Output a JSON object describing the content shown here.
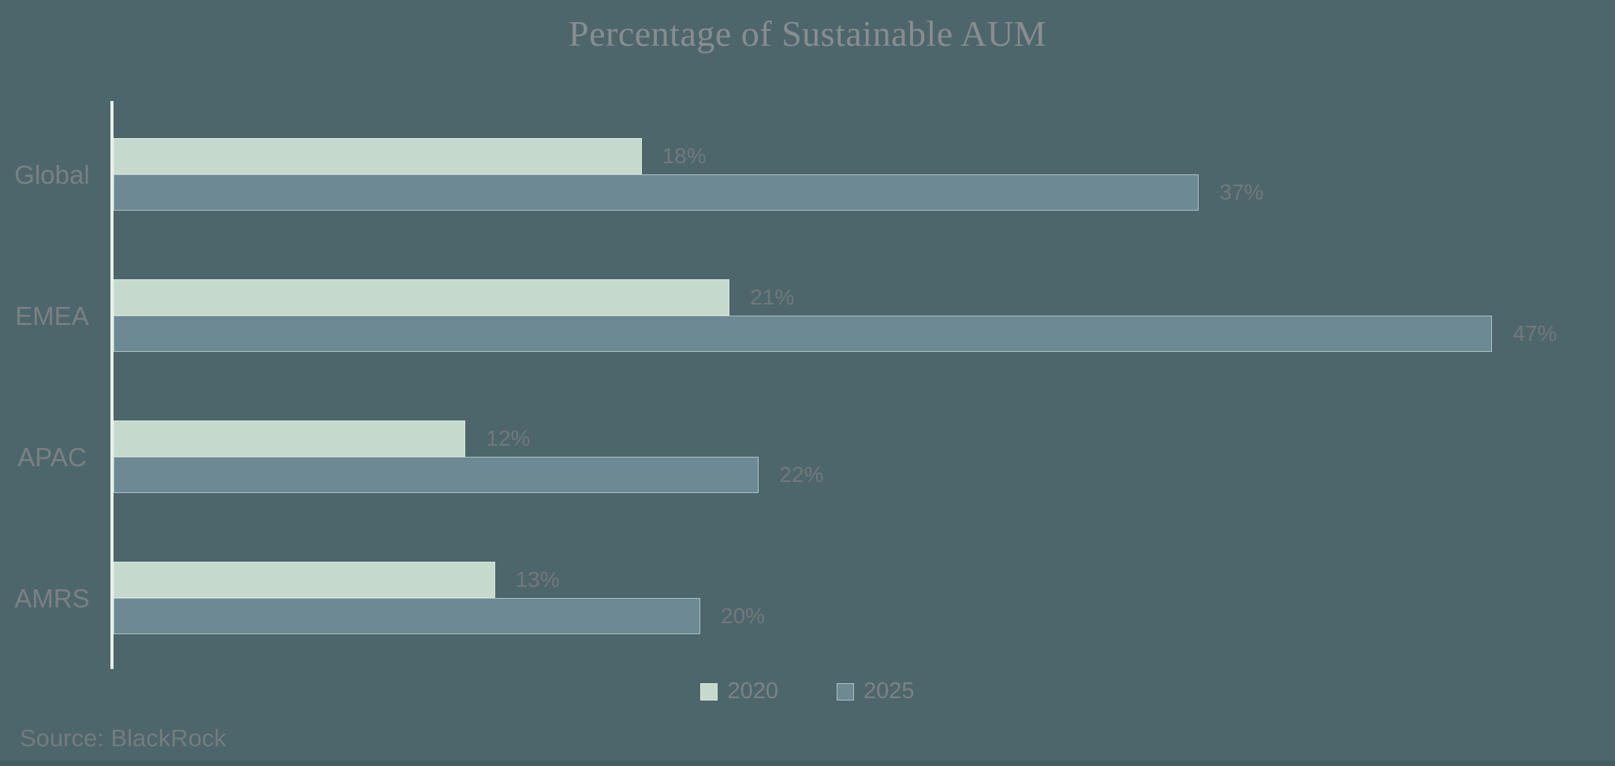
{
  "title": "Percentage of Sustainable AUM",
  "source": "Source: BlackRock",
  "colors": {
    "background": "#4c666c",
    "bar_2020": "#c5d9cc",
    "bar_2025": "#6c8994",
    "axis_line": "#e8efe9",
    "title_text": "#8a8c8e",
    "label_text": "#7c8082",
    "value_text": "#74787a"
  },
  "legend": {
    "position": "bottom",
    "items": [
      {
        "label": "2020",
        "color": "#c5d9cc"
      },
      {
        "label": "2025",
        "color": "#6c8994"
      }
    ]
  },
  "chart_data": {
    "type": "bar",
    "orientation": "horizontal",
    "title": "Percentage of Sustainable AUM",
    "categories": [
      "Global",
      "EMEA",
      "APAC",
      "AMRS"
    ],
    "series": [
      {
        "name": "2020",
        "color": "#c5d9cc",
        "values": [
          18,
          21,
          12,
          13
        ]
      },
      {
        "name": "2025",
        "color": "#6c8994",
        "values": [
          37,
          47,
          22,
          20
        ]
      }
    ],
    "value_suffix": "%",
    "xlim": [
      0,
      51
    ],
    "grid": false,
    "legend_position": "bottom",
    "source": "Source: BlackRock"
  }
}
